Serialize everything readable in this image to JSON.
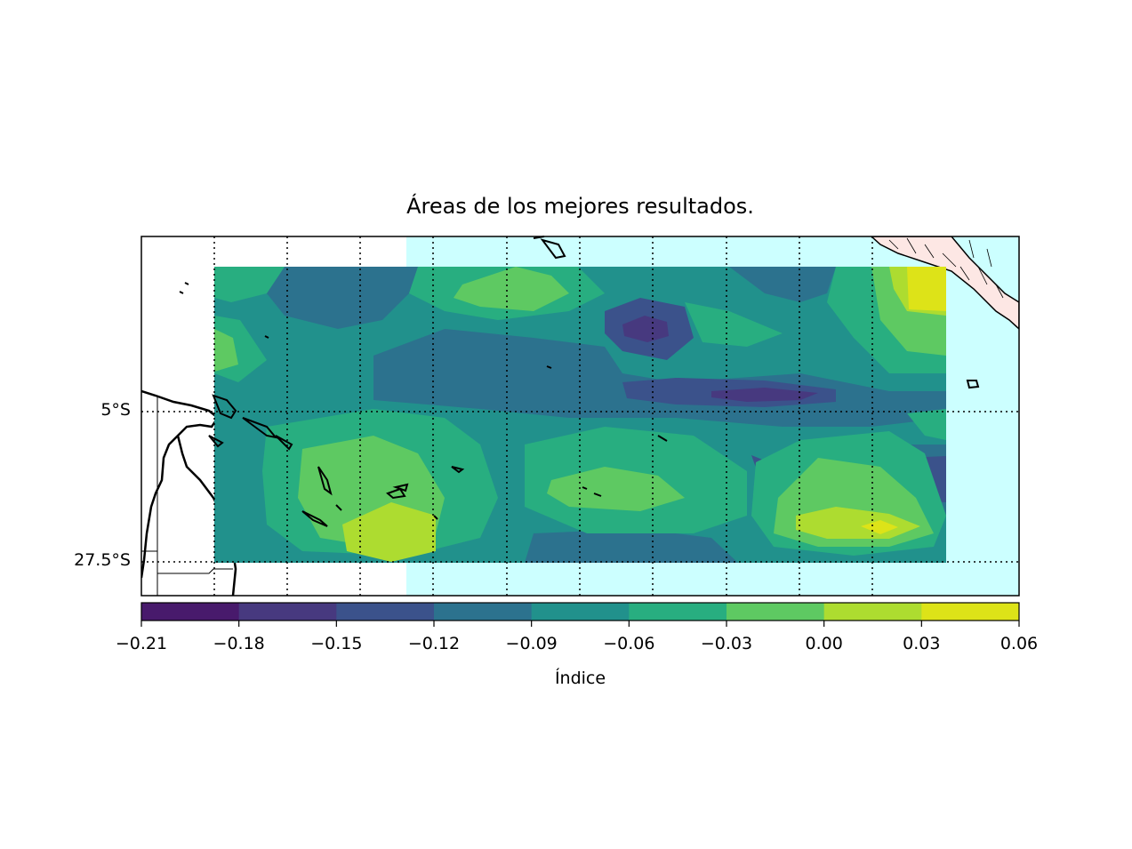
{
  "map": {
    "title": "Áreas de los mejores resultados.",
    "lat_labels": [
      "5°S",
      "27.5°S"
    ],
    "colormap": "viridis",
    "land_color": "#ffffff",
    "ocean_color": "#ccffff",
    "coastline_color": "#000000",
    "grid_style": "dotted"
  },
  "colorbar": {
    "label": "Índice",
    "ticks": [
      "−0.21",
      "−0.18",
      "−0.15",
      "−0.12",
      "−0.09",
      "−0.06",
      "−0.03",
      "0.00",
      "0.03",
      "0.06"
    ],
    "levels": [
      {
        "from": -0.21,
        "to": -0.18,
        "color": "#481a6c"
      },
      {
        "from": -0.18,
        "to": -0.15,
        "color": "#47397f"
      },
      {
        "from": -0.15,
        "to": -0.12,
        "color": "#3b528b"
      },
      {
        "from": -0.12,
        "to": -0.09,
        "color": "#2c728e"
      },
      {
        "from": -0.09,
        "to": -0.06,
        "color": "#21918c"
      },
      {
        "from": -0.06,
        "to": -0.03,
        "color": "#28ae80"
      },
      {
        "from": -0.03,
        "to": 0.0,
        "color": "#5ec962"
      },
      {
        "from": 0.0,
        "to": 0.03,
        "color": "#addc30"
      },
      {
        "from": 0.03,
        "to": 0.06,
        "color": "#dde318"
      }
    ]
  }
}
